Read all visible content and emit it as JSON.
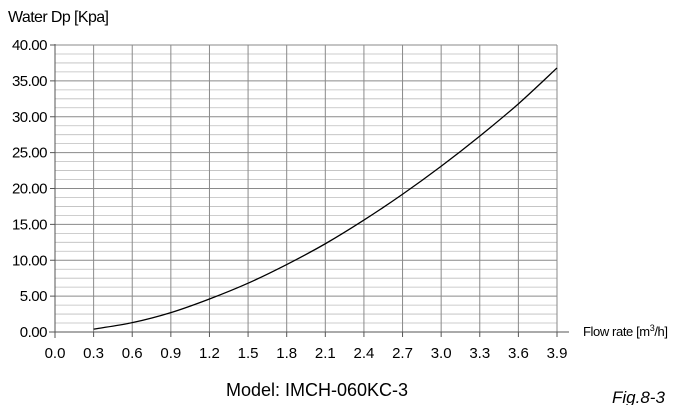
{
  "chart_data": {
    "type": "line",
    "ylabel": "Water Dp [Kpa]",
    "xlabel_prefix": "Flow rate [m",
    "xlabel_sup": "3",
    "xlabel_suffix": "/h]",
    "xlim": [
      0.0,
      3.9
    ],
    "ylim": [
      0.0,
      40.0
    ],
    "x_ticks": [
      "0.0",
      "0.3",
      "0.6",
      "0.9",
      "1.2",
      "1.5",
      "1.8",
      "2.1",
      "2.4",
      "2.7",
      "3.0",
      "3.3",
      "3.6",
      "3.9"
    ],
    "y_ticks": [
      "0.00",
      "5.00",
      "10.00",
      "15.00",
      "20.00",
      "25.00",
      "30.00",
      "35.00",
      "40.00"
    ],
    "grid": true,
    "series": [
      {
        "x": [
          0.3,
          0.6,
          0.9,
          1.2,
          1.5,
          1.8,
          2.1,
          2.4,
          2.7,
          3.0,
          3.3,
          3.6,
          3.9
        ],
        "values": [
          0.4,
          1.3,
          2.7,
          4.6,
          6.8,
          9.4,
          12.3,
          15.6,
          19.2,
          23.1,
          27.3,
          31.8,
          36.8
        ]
      }
    ],
    "footer": "Model: IMCH-060KC-3",
    "fig_label": "Fig.8-3"
  }
}
